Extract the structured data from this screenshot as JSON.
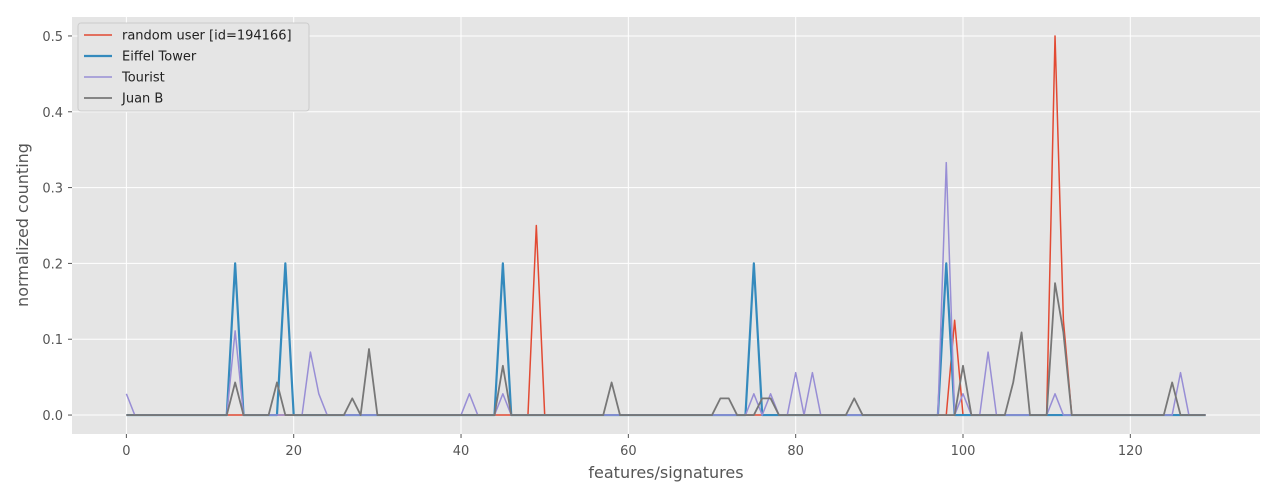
{
  "chart_data": {
    "type": "line",
    "title": "",
    "xlabel": "features/signatures",
    "ylabel": "normalized counting",
    "xlim": [
      -6.5,
      135.5
    ],
    "ylim": [
      -0.025,
      0.525
    ],
    "xticks": [
      0,
      20,
      40,
      60,
      80,
      100,
      120
    ],
    "yticks": [
      0.0,
      0.1,
      0.2,
      0.3,
      0.4,
      0.5
    ],
    "x_range": [
      0,
      129
    ],
    "grid": true,
    "legend_position": "top-left",
    "background": "#e5e5e5",
    "series": [
      {
        "name": "random user [id=194166]",
        "color": "#e24a33",
        "width": 1.5,
        "points": [
          [
            49,
            0.25
          ],
          [
            99,
            0.125
          ],
          [
            111,
            0.5
          ],
          [
            112,
            0.125
          ]
        ]
      },
      {
        "name": "Eiffel Tower",
        "color": "#348abd",
        "width": 2.2,
        "points": [
          [
            13,
            0.2
          ],
          [
            19,
            0.2
          ],
          [
            45,
            0.2
          ],
          [
            75,
            0.2
          ],
          [
            98,
            0.2
          ]
        ]
      },
      {
        "name": "Tourist",
        "color": "#988ed5",
        "width": 1.5,
        "points": [
          [
            0,
            0.028
          ],
          [
            13,
            0.111
          ],
          [
            22,
            0.083
          ],
          [
            23,
            0.028
          ],
          [
            41,
            0.028
          ],
          [
            45,
            0.028
          ],
          [
            75,
            0.028
          ],
          [
            77,
            0.028
          ],
          [
            80,
            0.056
          ],
          [
            82,
            0.056
          ],
          [
            98,
            0.333
          ],
          [
            100,
            0.028
          ],
          [
            103,
            0.083
          ],
          [
            111,
            0.028
          ],
          [
            126,
            0.056
          ]
        ]
      },
      {
        "name": "Juan B",
        "color": "#777777",
        "width": 1.8,
        "points": [
          [
            13,
            0.043
          ],
          [
            18,
            0.043
          ],
          [
            27,
            0.022
          ],
          [
            29,
            0.087
          ],
          [
            45,
            0.065
          ],
          [
            58,
            0.043
          ],
          [
            71,
            0.022
          ],
          [
            72,
            0.022
          ],
          [
            76,
            0.022
          ],
          [
            77,
            0.022
          ],
          [
            87,
            0.022
          ],
          [
            100,
            0.065
          ],
          [
            106,
            0.043
          ],
          [
            107,
            0.109
          ],
          [
            111,
            0.174
          ],
          [
            112,
            0.109
          ],
          [
            125,
            0.043
          ]
        ]
      }
    ]
  }
}
